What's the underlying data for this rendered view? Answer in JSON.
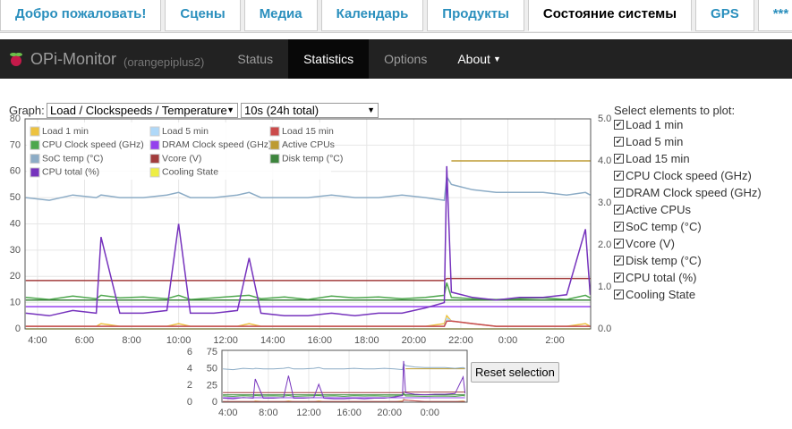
{
  "tabs": [
    "Добро пожаловать!",
    "Сцены",
    "Медиа",
    "Календарь",
    "Продукты",
    "Состояние системы",
    "GPS",
    "***"
  ],
  "navbar": {
    "brand": "OPi-Monitor",
    "host": "(orangepiplus2)",
    "links": [
      "Status",
      "Statistics",
      "Options",
      "About"
    ]
  },
  "controls": {
    "graph_label": "Graph:",
    "graph_select": "Load / Clockspeeds / Temperature",
    "range_select": "10s (24h total)",
    "reset": "Reset selection",
    "select_title": "Select elements to plot:"
  },
  "chart_data": {
    "type": "line",
    "x": [
      3.5,
      4.5,
      5.5,
      6.5,
      6.7,
      7.5,
      8.5,
      9.5,
      10.0,
      10.5,
      11.5,
      12.5,
      13.0,
      13.5,
      14.5,
      15.5,
      16.5,
      17.5,
      18.5,
      19.5,
      20.5,
      21.3,
      21.4,
      21.6,
      22.5,
      23.5,
      24.5,
      25.5,
      26.5,
      27.3,
      27.5
    ],
    "xlim": [
      3.47,
      27.52
    ],
    "xticks": [
      {
        "value": 4,
        "label": "4:00"
      },
      {
        "value": 6,
        "label": "6:00"
      },
      {
        "value": 8,
        "label": "8:00"
      },
      {
        "value": 10,
        "label": "10:00"
      },
      {
        "value": 12,
        "label": "12:00"
      },
      {
        "value": 14,
        "label": "14:00"
      },
      {
        "value": 16,
        "label": "16:00"
      },
      {
        "value": 18,
        "label": "18:00"
      },
      {
        "value": 20,
        "label": "20:00"
      },
      {
        "value": 22,
        "label": "22:00"
      },
      {
        "value": 24,
        "label": "0:00"
      },
      {
        "value": 26,
        "label": "2:00"
      }
    ],
    "ylim": [
      0,
      80
    ],
    "yticks": [
      0,
      10,
      20,
      30,
      40,
      50,
      60,
      70,
      80
    ],
    "y2lim": [
      0,
      5
    ],
    "y2ticks": [
      {
        "value": 0,
        "label": "0.0"
      },
      {
        "value": 1,
        "label": "1.0"
      },
      {
        "value": 2,
        "label": "2.0"
      },
      {
        "value": 3,
        "label": "3.0"
      },
      {
        "value": 4,
        "label": "4.0"
      },
      {
        "value": 5,
        "label": "5.0"
      }
    ],
    "grid": true,
    "series": [
      {
        "name": "Load 1 min",
        "color": "#edc240",
        "values": [
          1,
          1,
          1,
          1,
          2,
          1,
          1,
          1,
          2,
          1,
          1,
          1,
          2,
          1,
          1,
          1,
          1,
          1,
          1,
          1,
          1,
          2,
          5,
          3,
          2,
          1,
          1,
          1,
          1,
          2,
          1
        ]
      },
      {
        "name": "Load 5 min",
        "color": "#afd8f8",
        "values": [
          1,
          1,
          1,
          1,
          1,
          1,
          1,
          1,
          1,
          1,
          1,
          1,
          1,
          1,
          1,
          1,
          1,
          1,
          1,
          1,
          1,
          1,
          4,
          3,
          2,
          1,
          1,
          1,
          1,
          1,
          1
        ]
      },
      {
        "name": "Load 15 min",
        "color": "#cb4b4b",
        "values": [
          1,
          1,
          1,
          1,
          1,
          1,
          1,
          1,
          1,
          1,
          1,
          1,
          1,
          1,
          1,
          1,
          1,
          1,
          1,
          1,
          1,
          1,
          3,
          3,
          2,
          1,
          1,
          1,
          1,
          1,
          1
        ]
      },
      {
        "name": "CPU Clock speed (GHz)",
        "color": "#4da74d",
        "axis": "y2",
        "values": [
          0.75,
          0.7,
          0.78,
          0.72,
          0.8,
          0.74,
          0.76,
          0.72,
          0.8,
          0.7,
          0.74,
          0.78,
          0.8,
          0.72,
          0.76,
          0.7,
          0.78,
          0.74,
          0.76,
          0.72,
          0.75,
          0.8,
          1.1,
          0.75,
          0.72,
          0.7,
          0.72,
          0.74,
          0.7,
          0.8,
          0.74
        ]
      },
      {
        "name": "DRAM Clock speed (GHz)",
        "color": "#9440ed",
        "axis": "y2",
        "values": [
          0.53,
          0.53,
          0.53,
          0.53,
          0.53,
          0.53,
          0.53,
          0.53,
          0.53,
          0.53,
          0.53,
          0.53,
          0.53,
          0.53,
          0.53,
          0.53,
          0.53,
          0.53,
          0.53,
          0.53,
          0.53,
          0.53,
          0.53,
          0.53,
          0.53,
          0.53,
          0.53,
          0.53,
          0.53,
          0.53,
          0.53
        ]
      },
      {
        "name": "Active CPUs",
        "color": "#bd9b33",
        "axis": "y2",
        "values": [
          null,
          null,
          null,
          null,
          null,
          null,
          null,
          null,
          null,
          null,
          null,
          null,
          null,
          null,
          null,
          null,
          null,
          null,
          null,
          null,
          null,
          null,
          null,
          4,
          4,
          4,
          4,
          4,
          4,
          4,
          4
        ]
      },
      {
        "name": "SoC temp (°C)",
        "color": "#8cacc6",
        "values": [
          50,
          49,
          51,
          50,
          51,
          50,
          50,
          51,
          52,
          50,
          50,
          51,
          52,
          50,
          50,
          50,
          51,
          50,
          50,
          51,
          50,
          49,
          58,
          55,
          53,
          52,
          52,
          52,
          51,
          52,
          51
        ]
      },
      {
        "name": "Vcore (V)",
        "color": "#a23c3c",
        "axis": "y2",
        "values": [
          1.15,
          1.15,
          1.15,
          1.15,
          1.15,
          1.15,
          1.15,
          1.15,
          1.15,
          1.15,
          1.15,
          1.15,
          1.15,
          1.15,
          1.15,
          1.15,
          1.15,
          1.15,
          1.15,
          1.15,
          1.15,
          1.15,
          1.2,
          1.2,
          1.2,
          1.2,
          1.2,
          1.2,
          1.2,
          1.2,
          1.2
        ]
      },
      {
        "name": "Disk temp (°C)",
        "color": "#3d853d",
        "values": [
          11,
          11,
          11,
          11,
          11,
          11,
          11,
          11,
          11,
          11,
          11,
          11,
          11,
          11,
          11,
          11,
          11,
          11,
          11,
          11,
          11,
          11,
          11,
          11,
          11,
          11,
          11,
          11,
          11,
          11,
          11
        ]
      },
      {
        "name": "CPU total (%)",
        "color": "#7633bd",
        "values": [
          6,
          5,
          7,
          6,
          35,
          6,
          6,
          7,
          40,
          6,
          6,
          7,
          27,
          6,
          5,
          5,
          6,
          5,
          6,
          6,
          8,
          10,
          62,
          14,
          12,
          11,
          12,
          12,
          13,
          38,
          13
        ]
      },
      {
        "name": "Cooling State",
        "color": "#eeee44",
        "axis": "y2",
        "values": [
          0,
          0,
          0,
          0,
          0,
          0,
          0,
          0,
          0,
          0,
          0,
          0,
          0,
          0,
          0,
          0,
          0,
          0,
          0,
          0,
          0,
          0,
          0,
          0,
          0,
          0,
          0,
          0,
          0,
          0,
          0
        ]
      }
    ],
    "overview": {
      "xlim": [
        3.4,
        27.7
      ],
      "xticks": [
        {
          "value": 4,
          "label": "4:00"
        },
        {
          "value": 8,
          "label": "8:00"
        },
        {
          "value": 12,
          "label": "12:00"
        },
        {
          "value": 16,
          "label": "16:00"
        },
        {
          "value": 20,
          "label": "20:00"
        },
        {
          "value": 24,
          "label": "0:00"
        }
      ],
      "ylim": [
        0,
        78
      ],
      "yticks": [
        0,
        25,
        50,
        75
      ],
      "y2lim": [
        0,
        6.2
      ],
      "y2ticks": [
        0,
        2,
        4,
        6
      ]
    }
  }
}
